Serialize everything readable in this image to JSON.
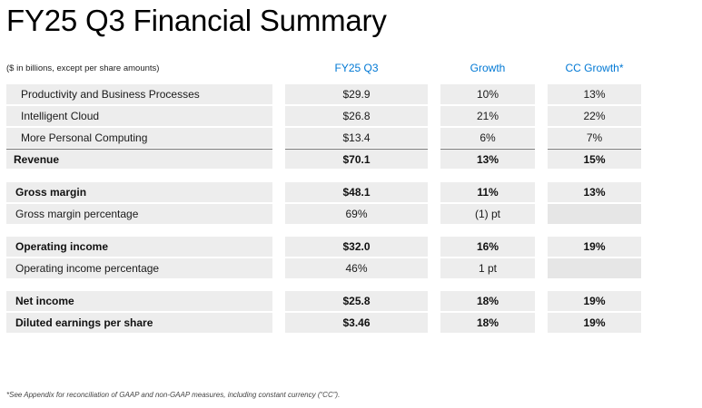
{
  "title": "FY25 Q3 Financial Summary",
  "units_note": "($ in billions, except per share amounts)",
  "columns": {
    "fy": "FY25 Q3",
    "growth": "Growth",
    "cc_growth": "CC Growth*"
  },
  "rows": [
    {
      "label": "Productivity and Business Processes",
      "fy": "$29.9",
      "growth": "10%",
      "cc": "13%"
    },
    {
      "label": "Intelligent Cloud",
      "fy": "$26.8",
      "growth": "21%",
      "cc": "22%"
    },
    {
      "label": "More Personal Computing",
      "fy": "$13.4",
      "growth": "6%",
      "cc": "7%"
    },
    {
      "label": "Revenue",
      "fy": "$70.1",
      "growth": "13%",
      "cc": "15%"
    },
    {
      "label": "Gross margin",
      "fy": "$48.1",
      "growth": "11%",
      "cc": "13%"
    },
    {
      "label": "Gross margin percentage",
      "fy": "69%",
      "growth": "(1) pt",
      "cc": ""
    },
    {
      "label": "Operating income",
      "fy": "$32.0",
      "growth": "16%",
      "cc": "19%"
    },
    {
      "label": "Operating income percentage",
      "fy": "46%",
      "growth": "1 pt",
      "cc": ""
    },
    {
      "label": "Net income",
      "fy": "$25.8",
      "growth": "18%",
      "cc": "19%"
    },
    {
      "label": "Diluted earnings per share",
      "fy": "$3.46",
      "growth": "18%",
      "cc": "19%"
    }
  ],
  "footnote": "*See Appendix for reconciliation of GAAP and non-GAAP measures, including constant currency (“CC”).",
  "colors": {
    "accent": "#0078d4",
    "cell_bg": "#ededed"
  }
}
